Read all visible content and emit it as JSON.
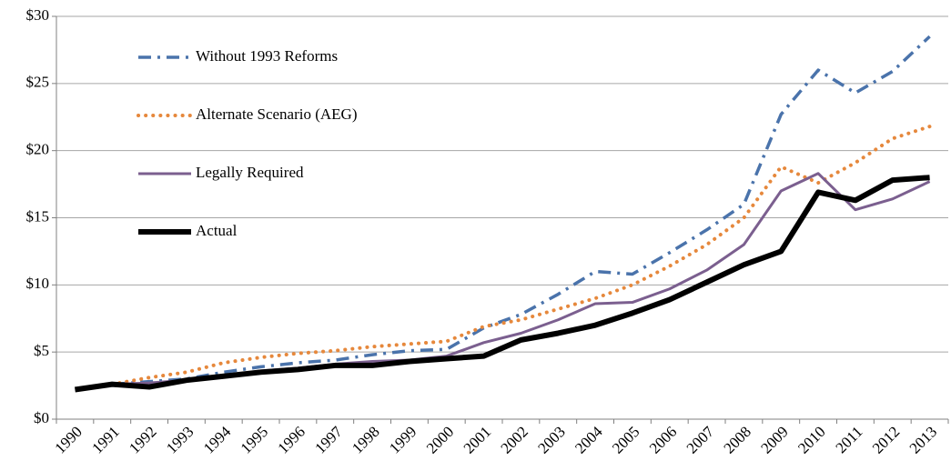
{
  "chart_data": {
    "type": "line",
    "categories": [
      "1990",
      "1991",
      "1992",
      "1993",
      "1994",
      "1995",
      "1996",
      "1997",
      "1998",
      "1999",
      "2000",
      "2001",
      "2002",
      "2003",
      "2004",
      "2005",
      "2006",
      "2007",
      "2008",
      "2009",
      "2010",
      "2011",
      "2012",
      "2013"
    ],
    "series": [
      {
        "name": "Without 1993 Reforms",
        "color": "#4a73ab",
        "style": "dash-dot",
        "values": [
          null,
          2.6,
          2.8,
          3.0,
          3.5,
          3.9,
          4.2,
          4.4,
          4.8,
          5.1,
          5.2,
          6.8,
          7.8,
          9.3,
          11.0,
          10.8,
          12.4,
          14.1,
          16.0,
          22.7,
          26.0,
          24.3,
          25.9,
          28.5
        ]
      },
      {
        "name": "Alternate Scenario (AEG)",
        "color": "#e6883c",
        "style": "dotted",
        "values": [
          null,
          2.6,
          3.1,
          3.5,
          4.2,
          4.6,
          4.9,
          5.1,
          5.4,
          5.6,
          5.8,
          6.9,
          7.4,
          8.2,
          9.0,
          10.0,
          11.4,
          13.0,
          15.0,
          18.8,
          17.6,
          19.1,
          20.9,
          21.8
        ]
      },
      {
        "name": "Legally Required",
        "color": "#7b5f8f",
        "style": "solid",
        "values": [
          null,
          2.6,
          2.7,
          2.9,
          3.2,
          3.6,
          3.8,
          4.1,
          4.3,
          4.4,
          4.7,
          5.7,
          6.4,
          7.4,
          8.6,
          8.7,
          9.7,
          11.1,
          13.0,
          17.0,
          18.3,
          15.6,
          16.4,
          17.7
        ]
      },
      {
        "name": "Actual",
        "color": "#000000",
        "style": "thick",
        "values": [
          2.2,
          2.6,
          2.4,
          2.9,
          3.2,
          3.5,
          3.7,
          4.0,
          4.0,
          4.3,
          4.5,
          4.7,
          5.9,
          6.4,
          7.0,
          7.9,
          8.9,
          10.2,
          11.5,
          12.5,
          16.9,
          16.3,
          17.8,
          18.0
        ]
      }
    ],
    "ylim": [
      0,
      30
    ],
    "yticks": [
      {
        "value": 0,
        "label": "$0"
      },
      {
        "value": 5,
        "label": "$5"
      },
      {
        "value": 10,
        "label": "$10"
      },
      {
        "value": 15,
        "label": "$15"
      },
      {
        "value": 20,
        "label": "$20"
      },
      {
        "value": 25,
        "label": "$25"
      },
      {
        "value": 30,
        "label": "$30"
      }
    ],
    "grid": true,
    "legend": "top-left"
  }
}
